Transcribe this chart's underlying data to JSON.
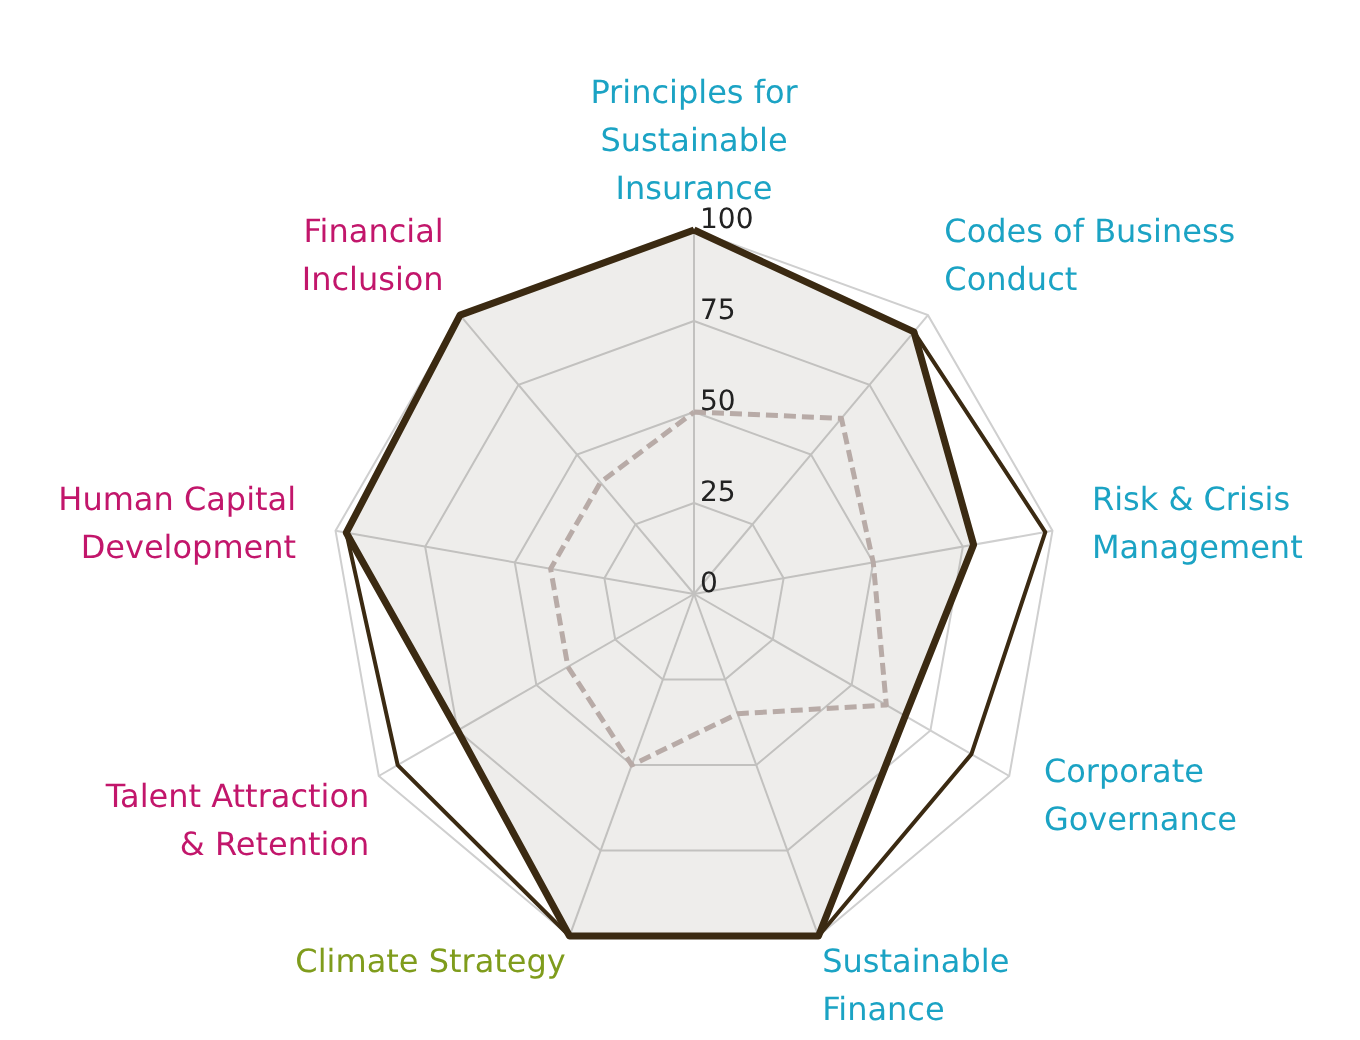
{
  "chart_data": {
    "type": "radar",
    "categories": [
      "Principles for Sustainable Insurance",
      "Codes of Business Conduct",
      "Risk & Crisis Management",
      "Corporate Governance",
      "Sustainable Finance",
      "Climate Strategy",
      "Talent Attraction & Retention",
      "Human Capital Development",
      "Financial Inclusion"
    ],
    "series": [
      {
        "type": "area",
        "color": "#3b2a12",
        "values": [
          100,
          94,
          78,
          67,
          100,
          100,
          75,
          97,
          100
        ]
      },
      {
        "color": "#3b2a12",
        "values": [
          100,
          94,
          98,
          88,
          100,
          100,
          94,
          97,
          100
        ]
      },
      {
        "line_style": "dashed",
        "color": "#b8aba7",
        "values": [
          50,
          63,
          50,
          61,
          35,
          50,
          40,
          40,
          40
        ]
      }
    ],
    "ylim": [
      0,
      100
    ],
    "yticks": [
      0,
      25,
      50,
      75,
      100
    ],
    "grid": true
  }
}
